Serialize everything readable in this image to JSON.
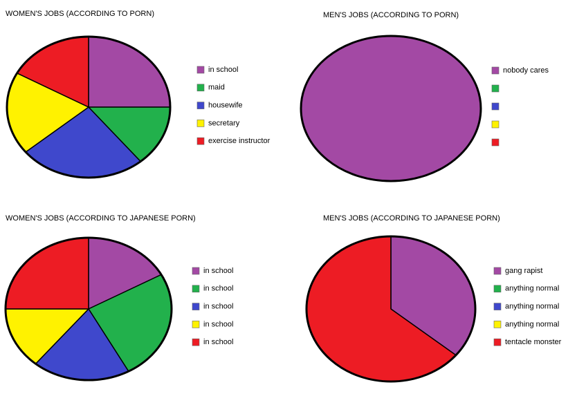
{
  "chart_data": [
    {
      "type": "pie",
      "title": "WOMEN'S JOBS (ACCORDING TO PORN)",
      "categories": [
        "in school",
        "maid",
        "housewife",
        "secretary",
        "exercise instructor"
      ],
      "values": [
        25,
        14,
        25,
        19,
        17
      ],
      "colors": [
        "#a349a4",
        "#22b14c",
        "#3f48cc",
        "#fff200",
        "#ed1c24"
      ]
    },
    {
      "type": "pie",
      "title": "MEN'S JOBS (ACCORDING TO PORN)",
      "categories": [
        "nobody cares",
        null,
        null,
        null,
        null
      ],
      "values": [
        100,
        0,
        0,
        0,
        0
      ],
      "colors": [
        "#a349a4",
        "#22b14c",
        "#3f48cc",
        "#fff200",
        "#ed1c24"
      ]
    },
    {
      "type": "pie",
      "title": "WOMEN'S JOBS (ACCORDING TO JAPANESE PORN)",
      "categories": [
        "in school",
        "in school",
        "in school",
        "in school",
        "in school"
      ],
      "values": [
        17,
        25,
        19,
        14,
        25
      ],
      "colors": [
        "#a349a4",
        "#22b14c",
        "#3f48cc",
        "#fff200",
        "#ed1c24"
      ]
    },
    {
      "type": "pie",
      "title": "MEN'S JOBS (ACCORDING TO JAPANESE PORN)",
      "categories": [
        "gang rapist",
        "anything normal",
        "anything normal",
        "anything normal",
        "tentacle monster"
      ],
      "values": [
        36,
        0,
        0,
        0,
        64
      ],
      "colors": [
        "#a349a4",
        "#22b14c",
        "#3f48cc",
        "#fff200",
        "#ed1c24"
      ]
    }
  ]
}
